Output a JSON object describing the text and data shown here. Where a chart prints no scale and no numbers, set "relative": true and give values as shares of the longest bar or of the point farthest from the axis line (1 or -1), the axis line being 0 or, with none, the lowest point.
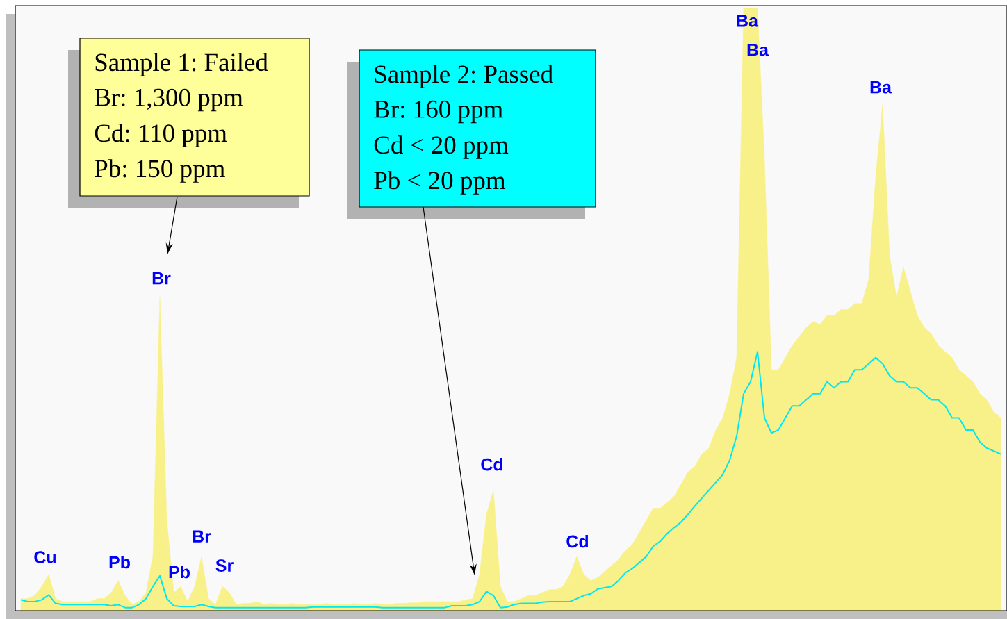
{
  "chart_data": {
    "type": "area",
    "relative": true,
    "categories": [
      null,
      null,
      null,
      null,
      null,
      null,
      null,
      null,
      null,
      null,
      null,
      null,
      null,
      null,
      null,
      null,
      null,
      null,
      null,
      null,
      null,
      null,
      null,
      null,
      null,
      null,
      null,
      null,
      null,
      null,
      null,
      null,
      null,
      null,
      null,
      null,
      null,
      null,
      null,
      null,
      null,
      null,
      null,
      null,
      null,
      null,
      null,
      null,
      null,
      null,
      null,
      null,
      null,
      null,
      null,
      null,
      null,
      null,
      null,
      null,
      null,
      null,
      null,
      null,
      null,
      null,
      null,
      null,
      null,
      null,
      null,
      null,
      null,
      null,
      null,
      null,
      null,
      null,
      null,
      null,
      null,
      null,
      null,
      null,
      null,
      null,
      null,
      null,
      null,
      null,
      null,
      null,
      null,
      null,
      null,
      null,
      null,
      null,
      null,
      null,
      null,
      null,
      null,
      null,
      null,
      null,
      null,
      null,
      null,
      null,
      null,
      null,
      null,
      null,
      null,
      null,
      null,
      null,
      null,
      null,
      null,
      null,
      null,
      null,
      null,
      null,
      null,
      null,
      null,
      null,
      null,
      null,
      null,
      null,
      null,
      null,
      null,
      null,
      null,
      null,
      null,
      null
    ],
    "series": [
      {
        "color": "#f8f088",
        "values": [
          0.02,
          0.02,
          0.025,
          0.04,
          0.06,
          0.02,
          0.015,
          0.015,
          0.015,
          0.015,
          0.015,
          0.02,
          0.02,
          0.03,
          0.05,
          0.025,
          0.01,
          0.015,
          0.03,
          0.09,
          0.52,
          0.15,
          0.03,
          0.04,
          0.015,
          0.04,
          0.09,
          0.02,
          0.01,
          0.04,
          0.03,
          0.01,
          0.012,
          0.012,
          0.015,
          0.01,
          0.012,
          0.01,
          0.01,
          0.012,
          0.01,
          0.01,
          0.01,
          0.01,
          0.012,
          0.01,
          0.01,
          0.01,
          0.012,
          0.01,
          0.01,
          0.012,
          0.01,
          0.01,
          0.012,
          0.012,
          0.013,
          0.013,
          0.015,
          0.015,
          0.015,
          0.015,
          0.015,
          0.015,
          0.018,
          0.02,
          0.06,
          0.16,
          0.2,
          0.04,
          0.015,
          0.015,
          0.02,
          0.025,
          0.025,
          0.03,
          0.035,
          0.035,
          0.04,
          0.06,
          0.09,
          0.06,
          0.05,
          0.055,
          0.065,
          0.075,
          0.085,
          0.1,
          0.11,
          0.13,
          0.15,
          0.17,
          0.17,
          0.18,
          0.19,
          0.21,
          0.23,
          0.24,
          0.26,
          0.27,
          0.3,
          0.32,
          0.36,
          0.42,
          1,
          1,
          1,
          0.75,
          0.4,
          0.4,
          0.42,
          0.44,
          0.455,
          0.47,
          0.48,
          0.475,
          0.49,
          0.49,
          0.5,
          0.5,
          0.51,
          0.51,
          0.55,
          0.72,
          0.84,
          0.59,
          0.52,
          0.57,
          0.53,
          0.49,
          0.47,
          0.46,
          0.44,
          0.43,
          0.42,
          0.4,
          0.39,
          0.38,
          0.36,
          0.35,
          0.33,
          0.32
        ]
      },
      {
        "type": "line",
        "color": "#00e8f0",
        "values": [
          0.018,
          0.015,
          0.015,
          0.018,
          0.026,
          0.012,
          0.01,
          0.01,
          0.01,
          0.01,
          0.01,
          0.01,
          0.01,
          0.008,
          0.01,
          0.005,
          0.005,
          0.01,
          0.02,
          0.04,
          0.058,
          0.02,
          0.008,
          0.007,
          0.007,
          0.007,
          0.01,
          0.007,
          0.005,
          0.005,
          0.005,
          0.005,
          0.005,
          0.005,
          0.005,
          0.005,
          0.005,
          0.005,
          0.005,
          0.005,
          0.005,
          0.005,
          0.006,
          0.006,
          0.006,
          0.006,
          0.006,
          0.006,
          0.006,
          0.006,
          0.006,
          0.006,
          0.005,
          0.005,
          0.005,
          0.005,
          0.005,
          0.005,
          0.005,
          0.005,
          0.005,
          0.005,
          0.008,
          0.008,
          0.008,
          0.01,
          0.015,
          0.032,
          0.025,
          0.005,
          0.006,
          0.01,
          0.012,
          0.012,
          0.012,
          0.014,
          0.015,
          0.015,
          0.015,
          0.015,
          0.02,
          0.025,
          0.028,
          0.036,
          0.038,
          0.04,
          0.05,
          0.063,
          0.07,
          0.08,
          0.09,
          0.107,
          0.115,
          0.128,
          0.138,
          0.147,
          0.16,
          0.174,
          0.187,
          0.2,
          0.213,
          0.226,
          0.25,
          0.29,
          0.36,
          0.38,
          0.43,
          0.32,
          0.295,
          0.3,
          0.32,
          0.34,
          0.34,
          0.35,
          0.36,
          0.36,
          0.38,
          0.37,
          0.38,
          0.38,
          0.4,
          0.4,
          0.41,
          0.42,
          0.41,
          0.39,
          0.38,
          0.38,
          0.37,
          0.37,
          0.36,
          0.35,
          0.35,
          0.34,
          0.32,
          0.32,
          0.3,
          0.3,
          0.28,
          0.27,
          0.265,
          0.26
        ]
      }
    ],
    "annotations": [
      "Sample 1: Failed",
      "Br: 1,300 ppm",
      "Cd: 110 ppm",
      "Pb: 150 ppm",
      "Sample 2: Passed",
      "Br: 160 ppm",
      "Cd < 20 ppm",
      "Pb < 20 ppm",
      "Cu",
      "Pb",
      "Br",
      "Pb",
      "Br",
      "Sr",
      "Cd",
      "Cd",
      "Ba",
      "Ba",
      "Ba"
    ]
  }
}
